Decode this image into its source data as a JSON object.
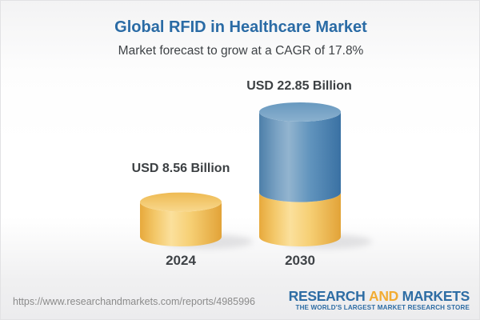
{
  "header": {
    "title": "Global RFID in Healthcare Market",
    "subtitle": "Market forecast to grow at a CAGR of 17.8%"
  },
  "chart_data": {
    "type": "bar",
    "variant": "3d-cylinder",
    "title": "Global RFID in Healthcare Market",
    "subtitle": "Market forecast to grow at a CAGR of 17.8%",
    "cagr_pct": 17.8,
    "unit": "USD Billion",
    "categories": [
      "2024",
      "2030"
    ],
    "values": [
      8.56,
      22.85
    ],
    "value_labels": [
      "USD 8.56 Billion",
      "USD 22.85 Billion"
    ],
    "legend": "none",
    "grid": "off",
    "colors": {
      "bar_2024": "#f2c363",
      "bar_2030_growth_segment": "#5d8cb4",
      "bar_2030_base_segment": "#f2c363",
      "label_text": "#3c4043"
    }
  },
  "footer": {
    "url": "https://www.researchandmarkets.com/reports/4985996",
    "logo": {
      "word1": "RESEARCH",
      "word2": "AND",
      "word3": "MARKETS",
      "tagline": "THE WORLD'S LARGEST MARKET RESEARCH STORE"
    }
  }
}
